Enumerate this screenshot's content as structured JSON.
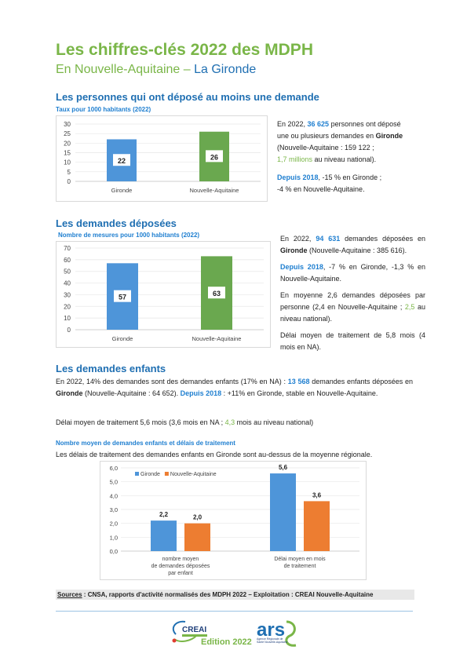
{
  "header": {
    "title": "Les chiffres-clés 2022 des MDPH",
    "subtitle_prefix": "En Nouvelle-Aquitaine – ",
    "subtitle_highlight": "La Gironde"
  },
  "section1": {
    "heading": "Les personnes qui ont déposé au moins une demande",
    "chart_title": "Taux pour 1000 habitants (2022)",
    "text": {
      "l1a": "En 2022, ",
      "l1b": "36 625",
      "l1c": " personnes ont déposé",
      "l2a": "une ou plusieurs demandes en ",
      "l2b": "Gironde",
      "l3": "(Nouvelle-Aquitaine : 159 122 ;",
      "l4a": "1,7 millions",
      "l4b": " au niveau national).",
      "l5a": "Depuis 2018",
      "l5b": ", -15 % en Gironde ;",
      "l6": "-4 % en Nouvelle-Aquitaine."
    }
  },
  "section2": {
    "heading": "Les demandes déposées",
    "chart_title": "Nombre de mesures pour 1000 habitants (2022)",
    "text": {
      "p1a": "En 2022, ",
      "p1b": "94 631",
      "p1c": " demandes déposées en ",
      "p1d": "Gironde",
      "p1e": " (Nouvelle-Aquitaine : 385 616).",
      "p2a": "Depuis 2018",
      "p2b": ", -7 % en Gironde, -1,3 % en Nouvelle-Aquitaine.",
      "p3a": "En moyenne 2,6 demandes déposées par personne (2,4 en Nouvelle-Aquitaine ; ",
      "p3b": "2,5",
      "p3c": " au niveau national).",
      "p4": "Délai moyen de traitement de 5,8 mois (4 mois en NA)."
    }
  },
  "section3": {
    "heading": "Les demandes enfants",
    "p1a": "En 2022, 14% des demandes sont des demandes enfants (17% en NA) : ",
    "p1b": "13 568",
    "p1c": " demandes enfants déposées en ",
    "p1d": "Gironde",
    "p1e": " (Nouvelle-Aquitaine : 64 652). ",
    "p1f": "Depuis 2018",
    "p1g": " : +11% en Gironde, stable en Nouvelle-Aquitaine.",
    "p2a": "Délai moyen de traitement 5,6 mois (3,6 mois en NA ; ",
    "p2b": "4,3",
    "p2c": " mois au niveau national)",
    "chart_title": "Nombre moyen de demandes enfants et délais de traitement",
    "chart_subtitle": "Les délais de traitement des demandes enfants en Gironde sont au-dessus de la moyenne régionale."
  },
  "chart_data": [
    {
      "type": "bar",
      "title": "Taux pour 1000 habitants (2022)",
      "categories": [
        "Gironde",
        "Nouvelle-Aquitaine"
      ],
      "values": [
        22,
        26
      ],
      "ylim": [
        0,
        30
      ],
      "yticks": [
        "0",
        "5",
        "10",
        "15",
        "20",
        "25",
        "30"
      ],
      "data_labels": [
        "22",
        "26"
      ],
      "colors": [
        "#4e95d9",
        "#6aa84f"
      ]
    },
    {
      "type": "bar",
      "title": "Nombre de mesures pour 1000 habitants (2022)",
      "categories": [
        "Gironde",
        "Nouvelle-Aquitaine"
      ],
      "values": [
        57,
        63
      ],
      "ylim": [
        0,
        70
      ],
      "yticks": [
        "0",
        "10",
        "20",
        "30",
        "40",
        "50",
        "60",
        "70"
      ],
      "data_labels": [
        "57",
        "63"
      ],
      "colors": [
        "#4e95d9",
        "#6aa84f"
      ]
    },
    {
      "type": "bar",
      "title": "Nombre moyen de demandes enfants et délais de traitement",
      "categories": [
        [
          "nombre moyen",
          "de demandes déposées",
          "par enfant"
        ],
        [
          "Délai moyen en mois",
          "de traitement"
        ]
      ],
      "series": [
        {
          "name": "Gironde",
          "values": [
            2.2,
            5.6
          ],
          "labels": [
            "2,2",
            "5,6"
          ],
          "color": "#4e95d9"
        },
        {
          "name": "Nouvelle-Aquitaine",
          "values": [
            2.0,
            3.6
          ],
          "labels": [
            "2,0",
            "3,6"
          ],
          "color": "#ed7d31"
        }
      ],
      "ylim": [
        0,
        6
      ],
      "yticks": [
        "0,0",
        "1,0",
        "2,0",
        "3,0",
        "4,0",
        "5,0",
        "6,0"
      ],
      "legend": "top-left"
    }
  ],
  "footer": {
    "sources_label": "Sources",
    "sources_text": " : CNSA, rapports d'activité normalisés des MDPH 2022 – Exploitation : CREAI Nouvelle-Aquitaine",
    "logo1": "CREAI",
    "edition": "Edition 2022",
    "logo2": "ars",
    "logo2_sub": "Agence Régionale de Santé Nouvelle-Aquitaine"
  }
}
